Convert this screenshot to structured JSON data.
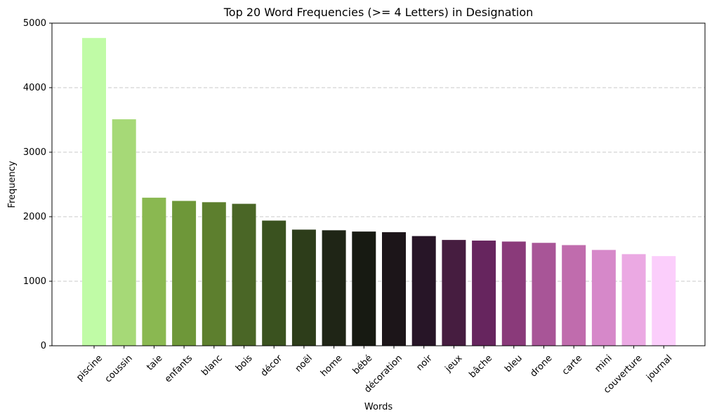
{
  "chart_data": {
    "type": "bar",
    "title": "Top 20 Word Frequencies (>= 4 Letters) in Designation",
    "xlabel": "Words",
    "ylabel": "Frequency",
    "ylim": [
      0,
      5000
    ],
    "yticks": [
      "0",
      "1000",
      "2000",
      "3000",
      "4000",
      "5000"
    ],
    "grid": "y-dashed",
    "categories": [
      "piscine",
      "coussin",
      "taie",
      "enfants",
      "blanc",
      "bois",
      "décor",
      "noël",
      "home",
      "bébé",
      "décoration",
      "noir",
      "jeux",
      "bâche",
      "bleu",
      "drone",
      "carte",
      "mini",
      "couverture",
      "journal"
    ],
    "values": [
      4770,
      3510,
      2295,
      2245,
      2225,
      2200,
      1940,
      1800,
      1790,
      1770,
      1760,
      1700,
      1640,
      1630,
      1615,
      1595,
      1560,
      1485,
      1420,
      1390
    ],
    "colors": [
      "#c0fba6",
      "#a6d977",
      "#8ab851",
      "#6e9739",
      "#5d7f2e",
      "#4a6626",
      "#3a521f",
      "#2d3d1a",
      "#1f2516",
      "#171a12",
      "#1c1519",
      "#271527",
      "#461d40",
      "#66255e",
      "#8a3a7a",
      "#a85597",
      "#c06cad",
      "#d688c9",
      "#eba9e3",
      "#fbcefb"
    ]
  }
}
